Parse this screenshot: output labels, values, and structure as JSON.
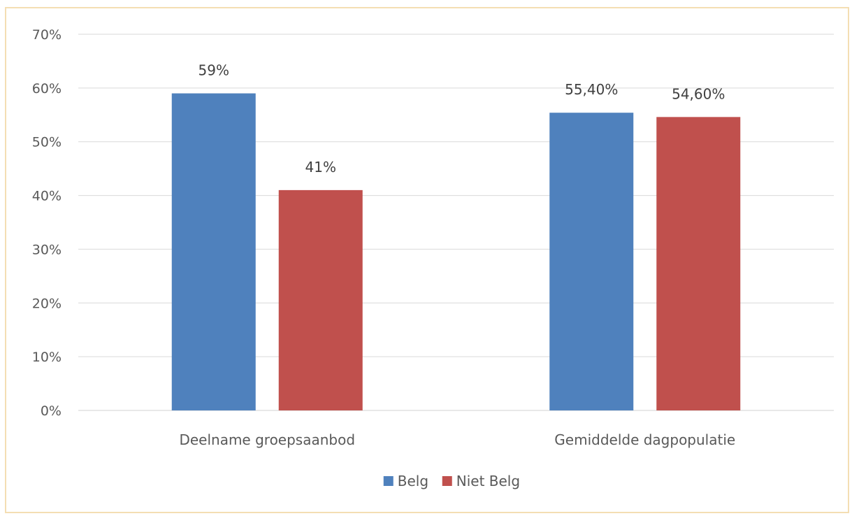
{
  "chart_data": {
    "type": "bar",
    "categories": [
      "Deelname groepsaanbod",
      "Gemiddelde dagpopulatie"
    ],
    "series": [
      {
        "name": "Belg",
        "color": "#4f81bd",
        "values": [
          59,
          55.4
        ],
        "labels": [
          "59%",
          "55,40%"
        ]
      },
      {
        "name": "Niet Belg",
        "color": "#c0504d",
        "values": [
          41,
          54.6
        ],
        "labels": [
          "41%",
          "54,60%"
        ]
      }
    ],
    "ylim": [
      0,
      70
    ],
    "yticks": [
      0,
      10,
      20,
      30,
      40,
      50,
      60,
      70
    ],
    "ytick_labels": [
      "0%",
      "10%",
      "20%",
      "30%",
      "40%",
      "50%",
      "60%",
      "70%"
    ],
    "grid": true,
    "legend": "bottom",
    "title": "",
    "xlabel": "",
    "ylabel": ""
  }
}
